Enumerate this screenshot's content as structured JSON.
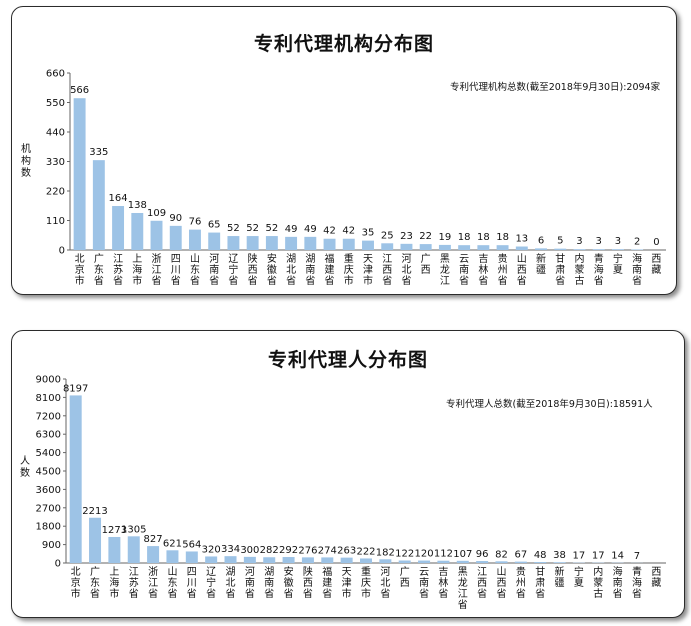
{
  "chart_data": [
    {
      "type": "bar",
      "title": "专利代理机构分布图",
      "total_note": "专利代理机构总数(截至2018年9月30日):2094家",
      "ylabel": "机构数",
      "ylim": [
        0,
        660
      ],
      "yticks": [
        0,
        110,
        220,
        330,
        440,
        550,
        660
      ],
      "bar_color": "#9dc3e6",
      "categories": [
        "北京市",
        "广东省",
        "江苏省",
        "上海市",
        "浙江省",
        "四川省",
        "山东省",
        "河南省",
        "辽宁省",
        "陕西省",
        "安徽省",
        "湖北省",
        "湖南省",
        "福建省",
        "重庆市",
        "天津市",
        "江西省",
        "河北省",
        "广西",
        "黑龙江",
        "云南省",
        "吉林省",
        "贵州省",
        "山西省",
        "新疆",
        "甘肃省",
        "内蒙古",
        "青海省",
        "宁夏",
        "海南省",
        "西藏"
      ],
      "values": [
        566,
        335,
        164,
        138,
        109,
        90,
        76,
        65,
        52,
        52,
        52,
        49,
        49,
        42,
        42,
        35,
        25,
        23,
        22,
        19,
        18,
        18,
        18,
        13,
        6,
        5,
        3,
        3,
        3,
        2,
        0
      ]
    },
    {
      "type": "bar",
      "title": "专利代理人分布图",
      "total_note": "专利代理人总数(截至2018年9月30日):18591人",
      "ylabel": "人数",
      "ylim": [
        0,
        9000
      ],
      "yticks": [
        0,
        900,
        1800,
        2700,
        3600,
        4500,
        5400,
        6300,
        7200,
        8100,
        9000
      ],
      "bar_color": "#9dc3e6",
      "categories": [
        "北京市",
        "广东省",
        "上海市",
        "江苏省",
        "浙江省",
        "山东省",
        "四川省",
        "辽宁省",
        "湖北省",
        "河南省",
        "湖南省",
        "安徽省",
        "陕西省",
        "福建省",
        "天津市",
        "重庆市",
        "河北省",
        "广西",
        "云南省",
        "吉林省",
        "黑龙江省",
        "江西省",
        "山西省",
        "贵州省",
        "甘肃省",
        "新疆",
        "宁夏",
        "内蒙古",
        "海南省",
        "青海省",
        "西藏"
      ],
      "values": [
        8197,
        2213,
        1273,
        1305,
        827,
        621,
        564,
        320,
        334,
        300,
        282,
        292,
        276,
        274,
        263,
        222,
        182,
        122,
        120,
        112,
        107,
        96,
        82,
        67,
        48,
        38,
        17,
        17,
        14,
        7,
        0
      ],
      "value_labels": [
        "8197",
        "2213",
        "1273",
        "1305",
        "827",
        "621",
        "564",
        "320",
        "334",
        "300",
        "282",
        "292",
        "276",
        "274",
        "263",
        "222",
        "182",
        "122",
        "120",
        "112",
        "107",
        "96",
        "82",
        "67",
        "48",
        "38",
        "17",
        "17",
        "14",
        "7",
        ""
      ]
    }
  ]
}
